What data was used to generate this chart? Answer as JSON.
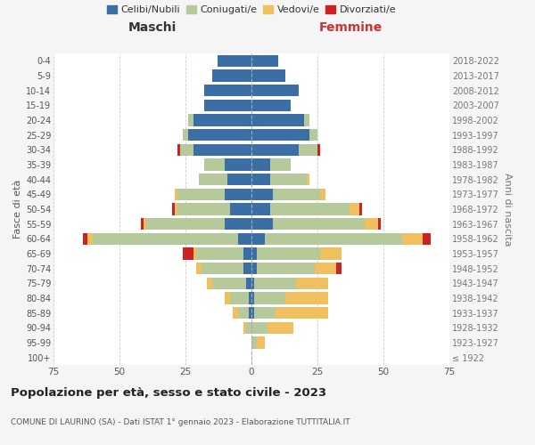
{
  "age_groups": [
    "100+",
    "95-99",
    "90-94",
    "85-89",
    "80-84",
    "75-79",
    "70-74",
    "65-69",
    "60-64",
    "55-59",
    "50-54",
    "45-49",
    "40-44",
    "35-39",
    "30-34",
    "25-29",
    "20-24",
    "15-19",
    "10-14",
    "5-9",
    "0-4"
  ],
  "birth_years": [
    "≤ 1922",
    "1923-1927",
    "1928-1932",
    "1933-1937",
    "1938-1942",
    "1943-1947",
    "1948-1952",
    "1953-1957",
    "1958-1962",
    "1963-1967",
    "1968-1972",
    "1973-1977",
    "1978-1982",
    "1983-1987",
    "1988-1992",
    "1993-1997",
    "1998-2002",
    "2003-2007",
    "2008-2012",
    "2013-2017",
    "2018-2022"
  ],
  "colors": {
    "celibe": "#3a6ea5",
    "coniugato": "#b5c99a",
    "vedovo": "#f0c060",
    "divorziato": "#cc2222"
  },
  "maschi": {
    "celibe": [
      0,
      0,
      0,
      1,
      1,
      2,
      3,
      3,
      5,
      10,
      8,
      10,
      9,
      10,
      22,
      24,
      22,
      18,
      18,
      15,
      13
    ],
    "coniugato": [
      0,
      0,
      2,
      4,
      7,
      13,
      16,
      18,
      55,
      30,
      20,
      18,
      11,
      8,
      5,
      2,
      2,
      0,
      0,
      0,
      0
    ],
    "vedovo": [
      0,
      0,
      1,
      2,
      2,
      2,
      2,
      1,
      2,
      1,
      1,
      1,
      0,
      0,
      0,
      0,
      0,
      0,
      0,
      0,
      0
    ],
    "divorziato": [
      0,
      0,
      0,
      0,
      0,
      0,
      0,
      4,
      2,
      1,
      1,
      0,
      0,
      0,
      1,
      0,
      0,
      0,
      0,
      0,
      0
    ]
  },
  "femmine": {
    "celibe": [
      0,
      0,
      0,
      1,
      1,
      1,
      2,
      2,
      5,
      8,
      7,
      8,
      7,
      7,
      18,
      22,
      20,
      15,
      18,
      13,
      10
    ],
    "coniugato": [
      0,
      2,
      6,
      8,
      12,
      16,
      22,
      24,
      52,
      35,
      30,
      18,
      14,
      8,
      7,
      3,
      2,
      0,
      0,
      0,
      0
    ],
    "vedovo": [
      0,
      3,
      10,
      20,
      16,
      12,
      8,
      8,
      8,
      5,
      4,
      2,
      1,
      0,
      0,
      0,
      0,
      0,
      0,
      0,
      0
    ],
    "divorziato": [
      0,
      0,
      0,
      0,
      0,
      0,
      2,
      0,
      3,
      1,
      1,
      0,
      0,
      0,
      1,
      0,
      0,
      0,
      0,
      0,
      0
    ]
  },
  "xlim": 75,
  "title": "Popolazione per età, sesso e stato civile - 2023",
  "subtitle": "COMUNE DI LAURINO (SA) - Dati ISTAT 1° gennaio 2023 - Elaborazione TUTTITALIA.IT",
  "ylabel": "Fasce di età",
  "ylabel_right": "Anni di nascita",
  "xlabel_left": "Maschi",
  "xlabel_right": "Femmine",
  "legend_labels": [
    "Celibi/Nubili",
    "Coniugati/e",
    "Vedovi/e",
    "Divorziati/e"
  ],
  "bg_color": "#f5f5f5",
  "plot_bg": "#ffffff"
}
